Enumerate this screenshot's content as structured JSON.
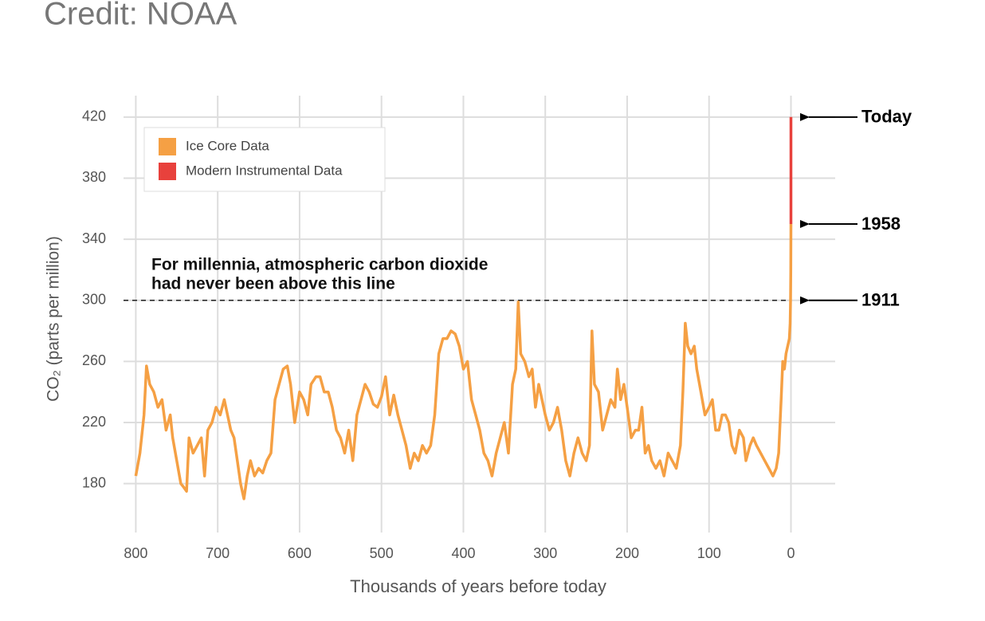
{
  "credit": "Credit: NOAA",
  "chart_data": {
    "type": "line",
    "xlabel": "Thousands of years before today",
    "ylabel": "CO₂ (parts per million)",
    "xlim": [
      815,
      -54
    ],
    "ylim": [
      148,
      434
    ],
    "xticks": [
      800,
      700,
      600,
      500,
      400,
      300,
      200,
      100,
      0
    ],
    "yticks": [
      180,
      220,
      260,
      300,
      340,
      380,
      420
    ],
    "grid": true,
    "legend": "upper left",
    "annotation_lines": [
      "For millennia, atmospheric carbon dioxide",
      "had never been above this line"
    ],
    "reference_line": {
      "value": 300
    },
    "markers": [
      {
        "label": "Today",
        "value": 420
      },
      {
        "label": "1958",
        "value": 350
      },
      {
        "label": "1911",
        "value": 300
      }
    ],
    "series": [
      {
        "name": "Ice Core Data",
        "color": "#f5a044",
        "x": [
          800,
          795,
          790,
          787,
          783,
          778,
          773,
          768,
          763,
          758,
          755,
          750,
          745,
          742,
          738,
          735,
          730,
          725,
          720,
          716,
          712,
          707,
          702,
          697,
          692,
          688,
          684,
          680,
          676,
          672,
          668,
          664,
          660,
          655,
          650,
          645,
          640,
          635,
          630,
          625,
          620,
          615,
          611,
          606,
          600,
          595,
          590,
          586,
          580,
          575,
          570,
          565,
          560,
          555,
          550,
          545,
          540,
          535,
          530,
          525,
          520,
          515,
          510,
          505,
          500,
          495,
          490,
          485,
          480,
          475,
          470,
          465,
          460,
          455,
          450,
          445,
          440,
          435,
          430,
          425,
          420,
          415,
          410,
          405,
          400,
          395,
          390,
          385,
          380,
          375,
          370,
          365,
          360,
          355,
          350,
          345,
          340,
          336,
          333,
          330,
          325,
          320,
          316,
          312,
          308,
          304,
          300,
          295,
          290,
          285,
          280,
          275,
          270,
          265,
          260,
          255,
          250,
          246,
          243,
          240,
          235,
          230,
          225,
          220,
          215,
          212,
          208,
          204,
          200,
          195,
          190,
          186,
          182,
          178,
          174,
          170,
          165,
          160,
          155,
          150,
          145,
          140,
          135,
          132,
          129,
          126,
          122,
          118,
          115,
          110,
          105,
          100,
          96,
          92,
          88,
          84,
          80,
          76,
          72,
          68,
          63,
          58,
          55,
          50,
          46,
          42,
          37,
          32,
          27,
          22,
          18,
          15,
          12,
          10,
          8,
          6,
          4,
          2,
          1,
          0.5,
          0.2,
          0
        ],
        "values": [
          185,
          200,
          225,
          257,
          245,
          240,
          230,
          235,
          215,
          225,
          210,
          195,
          180,
          178,
          175,
          210,
          200,
          205,
          210,
          185,
          215,
          220,
          230,
          225,
          235,
          225,
          215,
          210,
          195,
          180,
          170,
          185,
          195,
          185,
          190,
          187,
          195,
          200,
          235,
          245,
          255,
          257,
          245,
          220,
          240,
          235,
          225,
          245,
          250,
          250,
          240,
          240,
          230,
          215,
          210,
          200,
          215,
          195,
          225,
          235,
          245,
          240,
          232,
          230,
          237,
          250,
          225,
          238,
          225,
          215,
          205,
          190,
          200,
          195,
          205,
          200,
          205,
          225,
          265,
          275,
          275,
          280,
          278,
          270,
          255,
          260,
          235,
          225,
          215,
          200,
          195,
          185,
          200,
          210,
          220,
          200,
          245,
          255,
          299,
          265,
          260,
          250,
          255,
          230,
          245,
          235,
          225,
          215,
          220,
          230,
          215,
          195,
          185,
          200,
          210,
          200,
          195,
          205,
          280,
          245,
          240,
          215,
          225,
          235,
          230,
          255,
          235,
          245,
          230,
          210,
          215,
          215,
          230,
          200,
          205,
          195,
          190,
          195,
          185,
          200,
          195,
          190,
          205,
          240,
          285,
          270,
          265,
          270,
          255,
          240,
          225,
          230,
          235,
          215,
          215,
          225,
          225,
          220,
          205,
          200,
          215,
          210,
          195,
          205,
          210,
          205,
          200,
          195,
          190,
          185,
          190,
          200,
          235,
          260,
          255,
          265,
          270,
          275,
          285,
          300,
          320,
          350
        ]
      },
      {
        "name": "Modern Instrumental Data",
        "color": "#e8413c",
        "x": [
          0,
          0
        ],
        "values": [
          350,
          420
        ]
      }
    ]
  }
}
